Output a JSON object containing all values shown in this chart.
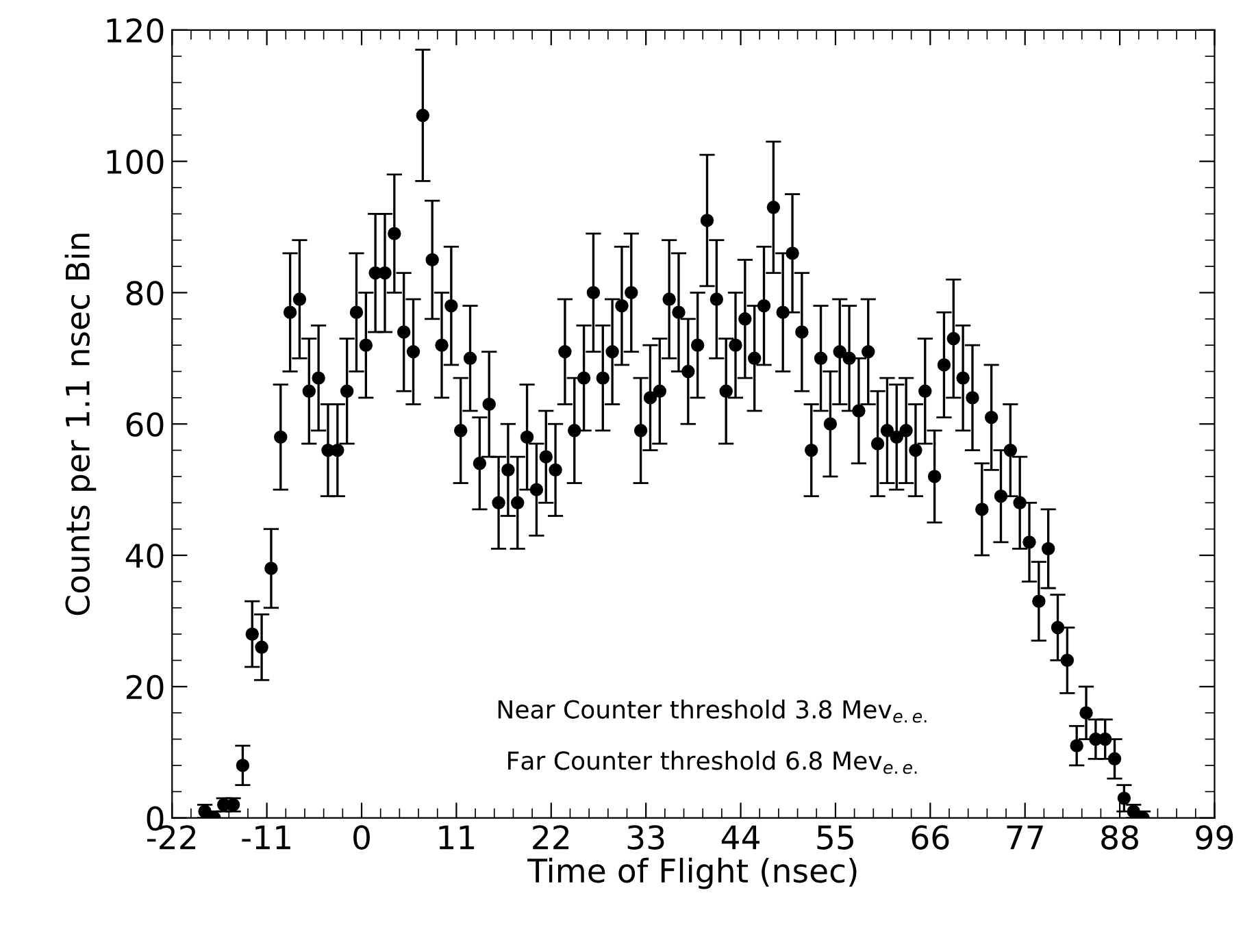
{
  "chart_data": {
    "type": "scatter",
    "xlabel": "Time of Flight (nsec)",
    "ylabel": "Counts per 1.1 nsec Bin",
    "xlim": [
      -22,
      99
    ],
    "ylim": [
      0,
      120
    ],
    "xticks": [
      -22,
      -11,
      0,
      11,
      22,
      33,
      44,
      55,
      66,
      77,
      88,
      99
    ],
    "yticks": [
      0,
      20,
      40,
      60,
      80,
      100,
      120
    ],
    "grid": false,
    "marker": "circle",
    "annotations": [
      "Near Counter threshold 3.8 Mev$_{e.e.}$",
      "Far Counter threshold 6.8 Mev$_{e.e.}$"
    ],
    "series": [
      {
        "color": "#000000",
        "x": [
          -18.2,
          -17.1,
          -16.0,
          -14.9,
          -13.8,
          -12.7,
          -11.6,
          -10.5,
          -9.4,
          -8.3,
          -7.2,
          -6.1,
          -5.0,
          -3.9,
          -2.8,
          -1.7,
          -0.6,
          0.5,
          1.6,
          2.7,
          3.8,
          4.9,
          6.0,
          7.1,
          8.2,
          9.3,
          10.4,
          11.5,
          12.6,
          13.7,
          14.8,
          15.9,
          17.0,
          18.1,
          19.2,
          20.3,
          21.4,
          22.5,
          23.6,
          24.7,
          25.8,
          26.9,
          28.0,
          29.1,
          30.2,
          31.3,
          32.4,
          33.5,
          34.6,
          35.7,
          36.8,
          37.9,
          39.0,
          40.1,
          41.2,
          42.3,
          43.4,
          44.5,
          45.6,
          46.7,
          47.8,
          48.9,
          50.0,
          51.1,
          52.2,
          53.3,
          54.4,
          55.5,
          56.6,
          57.7,
          58.8,
          59.9,
          61.0,
          62.1,
          63.2,
          64.3,
          65.4,
          66.5,
          67.6,
          68.7,
          69.8,
          70.9,
          72.0,
          73.1,
          74.2,
          75.3,
          76.4,
          77.5,
          78.6,
          79.7,
          80.8,
          81.9,
          83.0,
          84.1,
          85.2,
          86.3,
          87.4,
          88.5,
          89.6,
          90.7
        ],
        "values": [
          1,
          0,
          2,
          2,
          8,
          28,
          26,
          38,
          58,
          77,
          79,
          65,
          67,
          56,
          56,
          65,
          77,
          72,
          83,
          83,
          89,
          74,
          71,
          107,
          85,
          72,
          78,
          59,
          70,
          54,
          63,
          48,
          53,
          48,
          58,
          50,
          55,
          53,
          71,
          59,
          67,
          80,
          67,
          71,
          78,
          80,
          59,
          64,
          65,
          79,
          77,
          68,
          72,
          91,
          79,
          65,
          72,
          76,
          70,
          78,
          93,
          77,
          86,
          74,
          56,
          70,
          60,
          71,
          70,
          62,
          71,
          57,
          59,
          58,
          59,
          56,
          65,
          52,
          69,
          73,
          67,
          64,
          47,
          61,
          49,
          56,
          48,
          42,
          33,
          41,
          29,
          24,
          11,
          16,
          12,
          12,
          9,
          3,
          1,
          0
        ],
        "errors": [
          1,
          1,
          1,
          1,
          3,
          5,
          5,
          6,
          8,
          9,
          9,
          8,
          8,
          7,
          7,
          8,
          9,
          8,
          9,
          9,
          9,
          9,
          8,
          10,
          9,
          8,
          9,
          8,
          8,
          7,
          8,
          7,
          7,
          7,
          8,
          7,
          7,
          7,
          8,
          8,
          8,
          9,
          8,
          8,
          9,
          9,
          8,
          8,
          8,
          9,
          9,
          8,
          8,
          10,
          9,
          8,
          8,
          9,
          8,
          9,
          10,
          9,
          9,
          9,
          7,
          8,
          8,
          8,
          8,
          8,
          8,
          8,
          8,
          8,
          8,
          7,
          8,
          7,
          8,
          9,
          8,
          8,
          7,
          8,
          7,
          7,
          7,
          6,
          6,
          6,
          5,
          5,
          3,
          4,
          3,
          3,
          3,
          2,
          1,
          1
        ]
      }
    ]
  }
}
